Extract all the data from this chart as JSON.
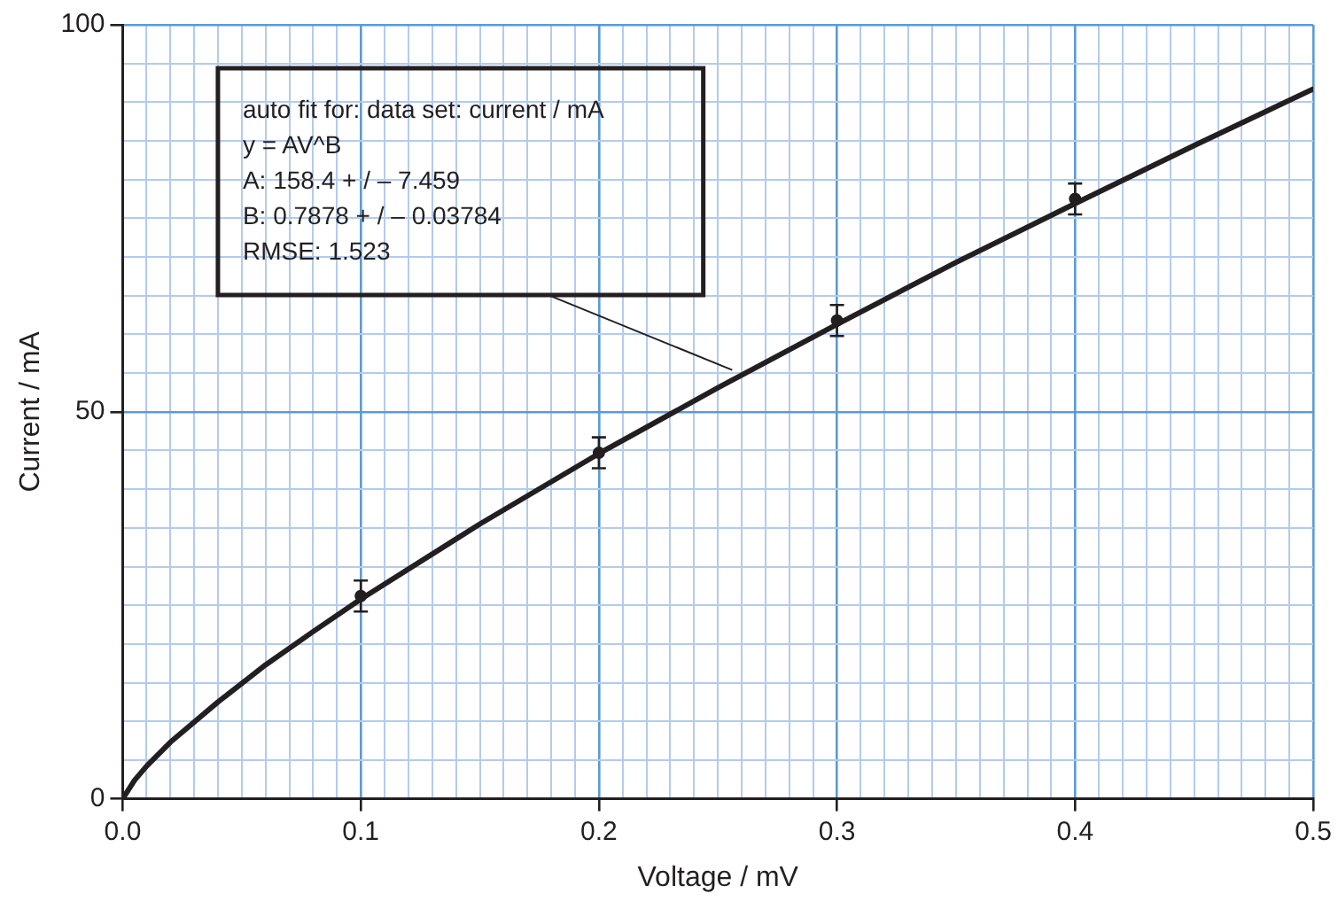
{
  "chart_data": {
    "type": "scatter",
    "xlabel": "Voltage / mV",
    "ylabel": "Current / mA",
    "xlim": [
      0,
      0.5
    ],
    "ylim": [
      0,
      100
    ],
    "xticks": [
      {
        "value": 0,
        "label": "0.0"
      },
      {
        "value": 0.01,
        "label": null
      },
      {
        "value": 0.02,
        "label": null
      },
      {
        "value": 0.03,
        "label": null
      },
      {
        "value": 0.04,
        "label": null
      },
      {
        "value": 0.05,
        "label": null
      },
      {
        "value": 0.06,
        "label": null
      },
      {
        "value": 0.07,
        "label": null
      },
      {
        "value": 0.08,
        "label": null
      },
      {
        "value": 0.09,
        "label": null
      },
      {
        "value": 0.1,
        "label": "0.1"
      },
      {
        "value": 0.11,
        "label": null
      },
      {
        "value": 0.12,
        "label": null
      },
      {
        "value": 0.13,
        "label": null
      },
      {
        "value": 0.14,
        "label": null
      },
      {
        "value": 0.15,
        "label": null
      },
      {
        "value": 0.16,
        "label": null
      },
      {
        "value": 0.17,
        "label": null
      },
      {
        "value": 0.18,
        "label": null
      },
      {
        "value": 0.19,
        "label": null
      },
      {
        "value": 0.2,
        "label": "0.2"
      },
      {
        "value": 0.21,
        "label": null
      },
      {
        "value": 0.22,
        "label": null
      },
      {
        "value": 0.23,
        "label": null
      },
      {
        "value": 0.24,
        "label": null
      },
      {
        "value": 0.25,
        "label": null
      },
      {
        "value": 0.26,
        "label": null
      },
      {
        "value": 0.27,
        "label": null
      },
      {
        "value": 0.28,
        "label": null
      },
      {
        "value": 0.29,
        "label": null
      },
      {
        "value": 0.3,
        "label": "0.3"
      },
      {
        "value": 0.31,
        "label": null
      },
      {
        "value": 0.32,
        "label": null
      },
      {
        "value": 0.33,
        "label": null
      },
      {
        "value": 0.34,
        "label": null
      },
      {
        "value": 0.35,
        "label": null
      },
      {
        "value": 0.36,
        "label": null
      },
      {
        "value": 0.37,
        "label": null
      },
      {
        "value": 0.38,
        "label": null
      },
      {
        "value": 0.39,
        "label": null
      },
      {
        "value": 0.4,
        "label": "0.4"
      },
      {
        "value": 0.41,
        "label": null
      },
      {
        "value": 0.42,
        "label": null
      },
      {
        "value": 0.43,
        "label": null
      },
      {
        "value": 0.44,
        "label": null
      },
      {
        "value": 0.45,
        "label": null
      },
      {
        "value": 0.46,
        "label": null
      },
      {
        "value": 0.47,
        "label": null
      },
      {
        "value": 0.48,
        "label": null
      },
      {
        "value": 0.49,
        "label": null
      },
      {
        "value": 0.5,
        "label": "0.5"
      }
    ],
    "yticks": [
      0,
      {
        "value": 5,
        "label": null
      },
      {
        "value": 10,
        "label": null
      },
      {
        "value": 15,
        "label": null
      },
      {
        "value": 20,
        "label": null
      },
      {
        "value": 25,
        "label": null
      },
      {
        "value": 30,
        "label": null
      },
      {
        "value": 35,
        "label": null
      },
      {
        "value": 40,
        "label": null
      },
      {
        "value": 45,
        "label": null
      },
      50,
      {
        "value": 55,
        "label": null
      },
      {
        "value": 60,
        "label": null
      },
      {
        "value": 65,
        "label": null
      },
      {
        "value": 70,
        "label": null
      },
      {
        "value": 75,
        "label": null
      },
      {
        "value": 80,
        "label": null
      },
      {
        "value": 85,
        "label": null
      },
      {
        "value": 90,
        "label": null
      },
      {
        "value": 95,
        "label": null
      },
      100
    ],
    "grid": true,
    "legend": false,
    "series": [
      {
        "marker": "circle",
        "color": "#231f20",
        "x": [
          0.1,
          0.2,
          0.3,
          0.4
        ],
        "values": [
          26.2,
          44.7,
          61.8,
          77.5
        ],
        "errors": [
          2,
          2,
          2,
          2
        ]
      },
      {
        "type": "line",
        "marker": "none",
        "line_style": "solid",
        "color": "#231f20",
        "x": [
          0,
          0.005,
          0.01,
          0.02,
          0.04,
          0.06,
          0.08,
          0.1,
          0.15,
          0.2,
          0.25,
          0.3,
          0.35,
          0.4,
          0.45,
          0.5
        ],
        "values": [
          0,
          2.4,
          4.2,
          7.3,
          12.5,
          17.3,
          21.6,
          25.8,
          35.5,
          44.6,
          53.1,
          61.3,
          69.3,
          76.9,
          84.4,
          91.7
        ]
      }
    ],
    "annotations": [
      {
        "text": "auto fit for: data set: current / mA\ny = AV^B\nA: 158.4 + / – 7.459\nB: 0.7878 + / – 0.03784\nRMSE: 1.523",
        "x": 0.256,
        "y": 55.4
      }
    ]
  }
}
